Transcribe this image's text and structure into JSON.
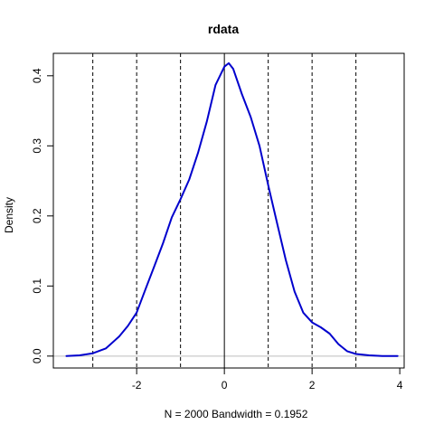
{
  "chart_data": {
    "type": "line",
    "title": "rdata",
    "xlabel": "N = 2000   Bandwidth = 0.1952",
    "ylabel": "Density",
    "xlim": [
      -3.9,
      4.1
    ],
    "ylim": [
      -0.017,
      0.432
    ],
    "x_ticks": [
      -2,
      0,
      2,
      4
    ],
    "x_tick_labels": [
      "-2",
      "0",
      "2",
      "4"
    ],
    "y_ticks": [
      0.0,
      0.1,
      0.2,
      0.3,
      0.4
    ],
    "y_tick_labels": [
      "0.0",
      "0.1",
      "0.2",
      "0.3",
      "0.4"
    ],
    "grid": false,
    "baseline": {
      "y": 0,
      "color": "#bebebe"
    },
    "series": [
      {
        "color": "#0000cd",
        "x": [
          -3.6,
          -3.3,
          -3.0,
          -2.7,
          -2.4,
          -2.2,
          -2.0,
          -1.8,
          -1.6,
          -1.4,
          -1.2,
          -1.0,
          -0.8,
          -0.6,
          -0.4,
          -0.2,
          0.0,
          0.1,
          0.2,
          0.4,
          0.6,
          0.8,
          1.0,
          1.2,
          1.4,
          1.6,
          1.8,
          2.0,
          2.2,
          2.4,
          2.6,
          2.8,
          3.0,
          3.3,
          3.6,
          3.95
        ],
        "y": [
          0.0,
          0.001,
          0.004,
          0.011,
          0.028,
          0.043,
          0.062,
          0.095,
          0.128,
          0.161,
          0.198,
          0.224,
          0.252,
          0.29,
          0.335,
          0.387,
          0.413,
          0.418,
          0.41,
          0.374,
          0.341,
          0.3,
          0.244,
          0.19,
          0.137,
          0.092,
          0.062,
          0.048,
          0.041,
          0.032,
          0.017,
          0.007,
          0.003,
          0.001,
          0.0,
          0.0
        ]
      }
    ],
    "vlines": [
      {
        "x": -3,
        "style": "dashed"
      },
      {
        "x": -2,
        "style": "dashed"
      },
      {
        "x": -1,
        "style": "dashed"
      },
      {
        "x": 0,
        "style": "solid"
      },
      {
        "x": 1,
        "style": "dashed"
      },
      {
        "x": 2,
        "style": "dashed"
      },
      {
        "x": 3,
        "style": "dashed"
      }
    ]
  }
}
